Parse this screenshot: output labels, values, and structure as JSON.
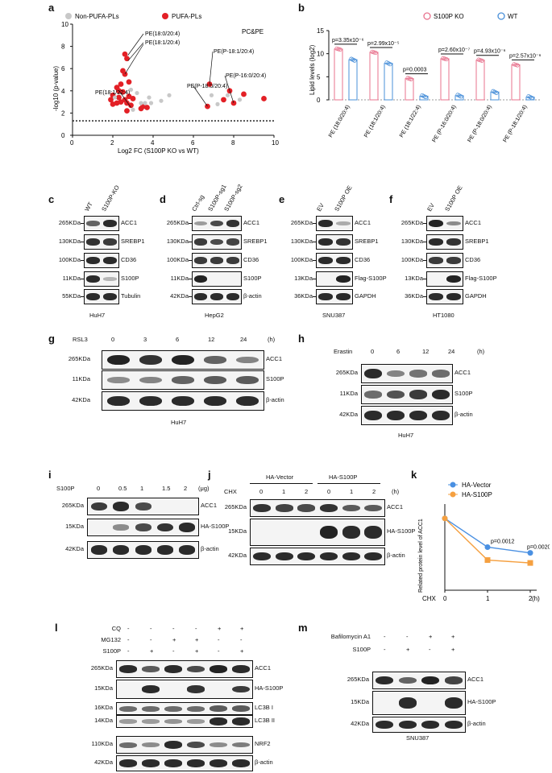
{
  "panel_letters": {
    "a": "a",
    "b": "b",
    "c": "c",
    "d": "d",
    "e": "e",
    "f": "f",
    "g": "g",
    "h": "h",
    "i": "i",
    "j": "j",
    "k": "k",
    "l": "l",
    "m": "m"
  },
  "colors": {
    "pufa": "#e32026",
    "nonpufa": "#c8c8c8",
    "ko": "#e8738e",
    "wt": "#4a90d9",
    "vector": "#4a90e2",
    "s100p": "#f5a040"
  },
  "panel_a": {
    "legend": [
      "Non-PUFA-PLs",
      "PUFA-PLs"
    ],
    "tag": "PC&PE",
    "labels": [
      "PE(18:0/20:4)",
      "PE(18:1/20:4)",
      "PE(P-18:1/20:4)",
      "PE(P-16:0/20:4)",
      "PE(P-18:0/20:4)",
      "PE(18:1/22:4)"
    ]
  },
  "chart_data": [
    {
      "type": "scatter",
      "xlabel": "Log2 FC (S100P KO vs WT)",
      "ylabel": "-log10 (p-value)",
      "xlim": [
        0,
        10
      ],
      "ylim": [
        0,
        10
      ],
      "xticks": [
        0,
        2,
        4,
        6,
        8,
        10
      ],
      "yticks": [
        0,
        2,
        4,
        6,
        8,
        10
      ],
      "threshold_y": 1.3,
      "series": [
        {
          "name": "PUFA-PLs",
          "points": [
            [
              2.6,
              7.3
            ],
            [
              2.7,
              6.9
            ],
            [
              2.5,
              5.8
            ],
            [
              2.6,
              5.5
            ],
            [
              2.4,
              4.6
            ],
            [
              2.8,
              4.8
            ],
            [
              2.2,
              4.3
            ],
            [
              2.3,
              4.0
            ],
            [
              2.5,
              3.9
            ],
            [
              2.0,
              3.6
            ],
            [
              2.3,
              3.4
            ],
            [
              2.8,
              3.5
            ],
            [
              1.9,
              3.2
            ],
            [
              2.6,
              3.2
            ],
            [
              3.0,
              3.3
            ],
            [
              2.4,
              3.0
            ],
            [
              2.2,
              2.9
            ],
            [
              2.7,
              2.9
            ],
            [
              2.0,
              2.8
            ],
            [
              2.9,
              2.7
            ],
            [
              3.5,
              2.6
            ],
            [
              3.7,
              2.5
            ],
            [
              3.4,
              2.4
            ],
            [
              2.7,
              2.2
            ],
            [
              6.8,
              4.6
            ],
            [
              7.8,
              4.0
            ],
            [
              8.5,
              3.7
            ],
            [
              7.5,
              3.2
            ],
            [
              8.0,
              2.9
            ],
            [
              9.5,
              3.3
            ],
            [
              6.7,
              2.6
            ]
          ]
        },
        {
          "name": "Non-PUFA-PLs",
          "points": [
            [
              2.1,
              3.4
            ],
            [
              2.9,
              4.1
            ],
            [
              3.2,
              3.8
            ],
            [
              3.8,
              3.4
            ],
            [
              3.9,
              2.9
            ],
            [
              4.4,
              3.1
            ],
            [
              4.8,
              3.6
            ],
            [
              3.4,
              2.9
            ],
            [
              6.9,
              3.6
            ],
            [
              7.2,
              2.8
            ],
            [
              7.7,
              3.6
            ],
            [
              8.3,
              3.2
            ],
            [
              3.0,
              2.3
            ],
            [
              3.6,
              2.9
            ]
          ]
        }
      ]
    },
    {
      "type": "bar",
      "ylabel": "Lipid levels (log2)",
      "ylim": [
        0,
        15
      ],
      "yticks": [
        0,
        5,
        10,
        15
      ],
      "categories": [
        "PE (18:0/20:4)",
        "PE (18:1/20:4)",
        "PE (18:1/22:4)",
        "PE (P-16:0/20:4)",
        "PE (P-18:0/20:4)",
        "PE (P-18:1/20:4)"
      ],
      "series": [
        {
          "name": "S100P KO",
          "values": [
            11.0,
            10.3,
            4.6,
            8.9,
            8.6,
            7.6
          ]
        },
        {
          "name": "WT",
          "values": [
            8.7,
            7.9,
            0.8,
            0.9,
            1.7,
            0.6
          ]
        }
      ],
      "pvalues": [
        "p=3.35x10⁻⁶",
        "p=2.99x10⁻⁵",
        "p=0.0003",
        "p=2.60x10⁻⁷",
        "p=4.93x10⁻⁶",
        "p=2.57x10⁻⁶"
      ]
    },
    {
      "type": "line",
      "ylabel": "Related protein level of ACC1",
      "xlabel_left": "CHX",
      "xunit": "(h)",
      "x": [
        0,
        1,
        2
      ],
      "ylim": [
        0,
        1.2
      ],
      "yticks": [
        0,
        0.2,
        0.4,
        0.6,
        0.8,
        1.0,
        1.2
      ],
      "series": [
        {
          "name": "HA-Vector",
          "values": [
            1.0,
            0.6,
            0.52
          ]
        },
        {
          "name": "HA-S100P",
          "values": [
            1.0,
            0.42,
            0.38
          ]
        }
      ],
      "pvalues": [
        "p=0.0012",
        "p=0.0020"
      ]
    }
  ],
  "panel_c": {
    "cols": [
      "WT",
      "S100P-KO"
    ],
    "mw": [
      "265KDa",
      "130KDa",
      "100KDa",
      "11KDa",
      "55KDa"
    ],
    "prot": [
      "ACC1",
      "SREBP1",
      "CD36",
      "S100P",
      "Tubulin"
    ],
    "cell": "HuH7"
  },
  "panel_d": {
    "cols": [
      "Ctrl-sg",
      "S100P-sg1",
      "S100P-sg2"
    ],
    "mw": [
      "265KDa",
      "130KDa",
      "100KDa",
      "11KDa",
      "42KDa"
    ],
    "prot": [
      "ACC1",
      "SREBP1",
      "CD36",
      "S100P",
      "β-actin"
    ],
    "cell": "HepG2"
  },
  "panel_e": {
    "cols": [
      "EV",
      "S100P OE"
    ],
    "mw": [
      "265KDa",
      "130KDa",
      "100KDa",
      "13KDa",
      "36KDa"
    ],
    "prot": [
      "ACC1",
      "SREBP1",
      "CD36",
      "Flag-S100P",
      "GAPDH"
    ],
    "cell": "SNU387"
  },
  "panel_f": {
    "cols": [
      "EV",
      "S100P OE"
    ],
    "mw": [
      "265KDa",
      "130KDa",
      "100KDa",
      "13KDa",
      "36KDa"
    ],
    "prot": [
      "ACC1",
      "SREBP1",
      "CD36",
      "Flag-S100P",
      "GAPDH"
    ],
    "cell": "HT1080"
  },
  "panel_g": {
    "treat": "RSL3",
    "times": [
      "0",
      "3",
      "6",
      "12",
      "24"
    ],
    "unit": "(h)",
    "mw": [
      "265KDa",
      "11KDa",
      "42KDa"
    ],
    "prot": [
      "ACC1",
      "S100P",
      "β-actin"
    ],
    "cell": "HuH7"
  },
  "panel_h": {
    "treat": "Erastin",
    "times": [
      "0",
      "6",
      "12",
      "24"
    ],
    "unit": "(h)",
    "mw": [
      "265KDa",
      "11KDa",
      "42KDa"
    ],
    "prot": [
      "ACC1",
      "S100P",
      "β-actin"
    ],
    "cell": "HuH7"
  },
  "panel_i": {
    "treat": "S100P",
    "doses": [
      "0",
      "0.5",
      "1",
      "1.5",
      "2"
    ],
    "unit": "(μg)",
    "mw": [
      "265KDa",
      "15KDa",
      "42KDa"
    ],
    "prot": [
      "ACC1",
      "HA-S100P",
      "β-actin"
    ]
  },
  "panel_j": {
    "groups": [
      "HA-Vector",
      "HA-S100P"
    ],
    "treat": "CHX",
    "times": [
      "0",
      "1",
      "2",
      "0",
      "1",
      "2"
    ],
    "unit": "(h)",
    "mw": [
      "265KDa",
      "15KDa",
      "42KDa"
    ],
    "prot": [
      "ACC1",
      "HA-S100P",
      "β-actin"
    ]
  },
  "panel_l": {
    "rows": [
      "CQ",
      "MG132",
      "S100P"
    ],
    "signs": [
      [
        "-",
        "-",
        "-",
        "-",
        "+",
        "+"
      ],
      [
        "-",
        "-",
        "+",
        "+",
        "-",
        "-"
      ],
      [
        "-",
        "+",
        "-",
        "+",
        "-",
        "+"
      ]
    ],
    "mw": [
      "265KDa",
      "15KDa",
      "16KDa",
      "14KDa",
      "110KDa",
      "42KDa"
    ],
    "prot": [
      "ACC1",
      "HA-S100P",
      "LC3B I",
      "LC3B II",
      "NRF2",
      "β-actin"
    ]
  },
  "panel_m": {
    "rows": [
      "Bafilomycin A1",
      "S100P"
    ],
    "signs": [
      [
        "-",
        "-",
        "+",
        "+"
      ],
      [
        "-",
        "+",
        "-",
        "+"
      ]
    ],
    "mw": [
      "265KDa",
      "15KDa",
      "42KDa"
    ],
    "prot": [
      "ACC1",
      "HA-S100P",
      "β-actin"
    ],
    "cell": "SNU387"
  }
}
